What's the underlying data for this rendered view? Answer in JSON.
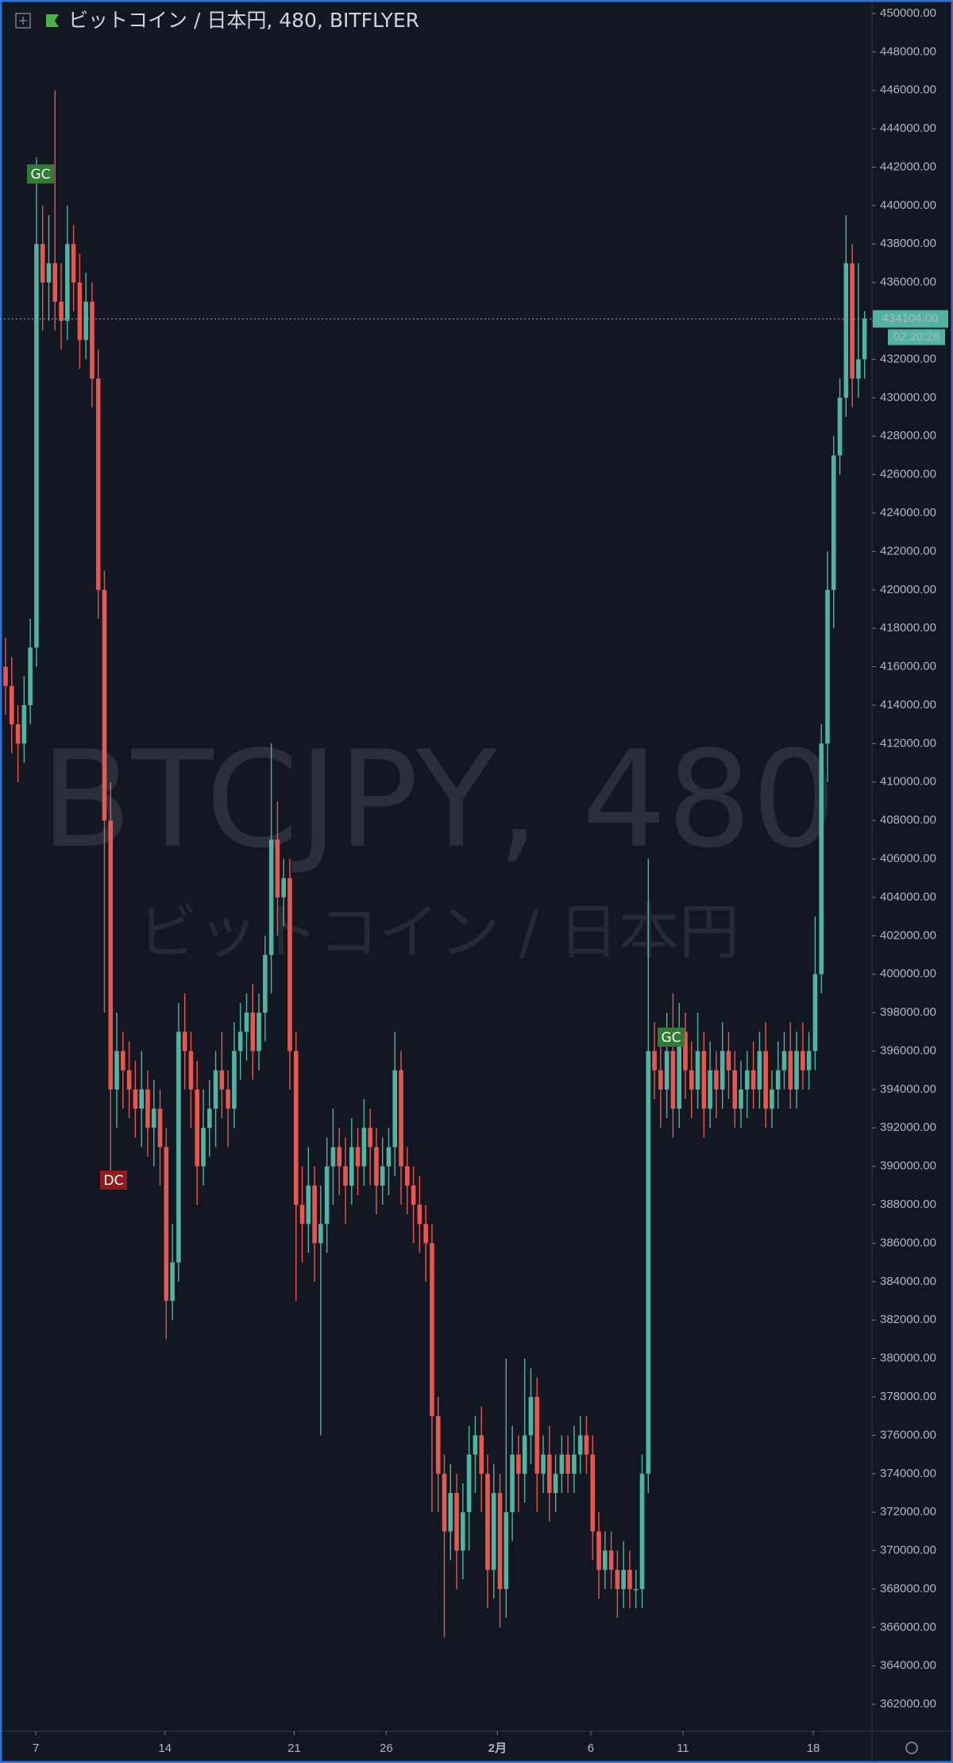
{
  "chart_data": {
    "type": "candlestick",
    "title": "ビットコイン / 日本円, 480, BITFLYER",
    "watermark": "BTCJPY, 480",
    "watermark_subtitle": "ビットコイン / 日本円",
    "up_color": "#4fb4a2",
    "down_color": "#e8574f",
    "open": [
      416000,
      415000,
      413000,
      412000,
      414000,
      417000,
      438000,
      436000,
      437000,
      435000,
      434000,
      438000,
      436000,
      433000,
      435000,
      431000,
      420000,
      408000,
      394000,
      396000,
      395000,
      394000,
      393000,
      394000,
      392000,
      393000,
      391000,
      383000,
      385000,
      397000,
      396000,
      394000,
      390000,
      392000,
      393000,
      395000,
      394000,
      393000,
      396000,
      397000,
      398000,
      396000,
      398000,
      401000,
      407000,
      404000,
      405000,
      396000,
      388000,
      387000,
      389000,
      386000,
      387000,
      390000,
      391000,
      390000,
      389000,
      391000,
      390000,
      392000,
      391000,
      389000,
      390000,
      391000,
      395000,
      390000,
      389000,
      388000,
      387000,
      386000,
      377000,
      374000,
      371000,
      373000,
      370000,
      372000,
      375000,
      376000,
      374000,
      369000,
      373000,
      368000,
      372000,
      375000,
      374000,
      376000,
      378000,
      374000,
      375000,
      373000,
      374000,
      375000,
      374000,
      375000,
      376000,
      375000,
      371000,
      369000,
      370000,
      369000,
      368000,
      369000,
      368000,
      368000,
      374000,
      396000,
      395000,
      394000,
      396000,
      393000,
      397000,
      395000,
      394000,
      396000,
      393000,
      395000,
      394000,
      396000,
      395000,
      393000,
      394000,
      395000,
      394000,
      396000,
      393000,
      394000,
      395000,
      396000,
      394000,
      396000,
      395000,
      396000,
      400000,
      412000,
      420000,
      427000,
      430000,
      437000,
      431000,
      432000
    ],
    "high": [
      417500,
      416500,
      414000,
      415500,
      418500,
      442500,
      440000,
      439500,
      446000,
      437000,
      440000,
      439000,
      437500,
      436500,
      436000,
      432500,
      421000,
      410000,
      398000,
      397000,
      396500,
      395500,
      396000,
      395000,
      394500,
      394000,
      392000,
      387000,
      398500,
      399000,
      397000,
      395500,
      394000,
      394500,
      396000,
      397000,
      395000,
      397500,
      398500,
      399000,
      399500,
      399000,
      402000,
      412000,
      409000,
      406000,
      406000,
      397000,
      390000,
      391000,
      390000,
      389000,
      391500,
      393000,
      392000,
      391500,
      392500,
      392000,
      393500,
      393000,
      392000,
      391500,
      392000,
      397000,
      396000,
      391000,
      390000,
      389500,
      388000,
      387000,
      378000,
      375000,
      374500,
      374000,
      373500,
      376500,
      377000,
      377500,
      375000,
      374500,
      374000,
      380000,
      376500,
      376000,
      380000,
      379500,
      379000,
      376000,
      376500,
      375000,
      376000,
      376000,
      376500,
      377000,
      377000,
      376000,
      372000,
      371000,
      371000,
      370000,
      370500,
      370000,
      369000,
      375000,
      406000,
      397500,
      396500,
      398000,
      399000,
      398500,
      398000,
      396500,
      398000,
      397000,
      396500,
      396000,
      397500,
      397000,
      396000,
      395500,
      396000,
      396500,
      397000,
      397500,
      395000,
      396500,
      397000,
      397500,
      397000,
      397500,
      397000,
      403000,
      413000,
      422000,
      428000,
      431000,
      439500,
      438000,
      437000,
      434500
    ],
    "low": [
      413500,
      411500,
      410000,
      411000,
      413000,
      416000,
      433500,
      434000,
      433500,
      432500,
      433000,
      434500,
      431500,
      432000,
      429500,
      418500,
      398000,
      389000,
      392000,
      393000,
      392500,
      391500,
      391000,
      390500,
      390000,
      389000,
      381000,
      382000,
      384000,
      394000,
      392000,
      388000,
      389000,
      390500,
      391000,
      392500,
      391000,
      392000,
      394500,
      395500,
      394500,
      395000,
      396500,
      399000,
      402000,
      402500,
      394000,
      383000,
      385000,
      385500,
      384000,
      376000,
      385500,
      388000,
      388500,
      387000,
      388000,
      388500,
      389000,
      389000,
      387500,
      388000,
      388500,
      389500,
      388000,
      387500,
      386000,
      385500,
      384000,
      372000,
      372000,
      365500,
      369500,
      368000,
      368500,
      370000,
      373000,
      372000,
      367000,
      367500,
      366000,
      366500,
      370500,
      372000,
      372500,
      374500,
      372000,
      373000,
      371500,
      372000,
      373000,
      373000,
      373000,
      374000,
      374000,
      369500,
      367500,
      368000,
      368000,
      366500,
      367000,
      367000,
      367000,
      367000,
      373000,
      393500,
      392000,
      392500,
      391500,
      392000,
      393500,
      392500,
      393000,
      391500,
      392000,
      392500,
      393000,
      393500,
      392000,
      392000,
      392500,
      393000,
      393000,
      392000,
      392000,
      393000,
      394000,
      393000,
      393000,
      394000,
      394000,
      395000,
      399000,
      410000,
      418000,
      426000,
      429000,
      429500,
      430000,
      431000
    ],
    "close": [
      415000,
      413000,
      412000,
      414000,
      417000,
      438000,
      436000,
      437000,
      435000,
      434000,
      438000,
      436000,
      433000,
      435000,
      431000,
      420000,
      408000,
      394000,
      396000,
      395000,
      394000,
      393000,
      394000,
      392000,
      393000,
      391000,
      383000,
      385000,
      397000,
      396000,
      394000,
      390000,
      392000,
      393000,
      395000,
      394000,
      393000,
      396000,
      397000,
      398000,
      396000,
      398000,
      401000,
      407000,
      404000,
      405000,
      396000,
      388000,
      387000,
      389000,
      386000,
      387000,
      390000,
      391000,
      390000,
      389000,
      391000,
      390000,
      392000,
      391000,
      389000,
      390000,
      391000,
      395000,
      390000,
      389000,
      388000,
      387000,
      386000,
      377000,
      374000,
      371000,
      373000,
      370000,
      372000,
      375000,
      376000,
      374000,
      369000,
      373000,
      368000,
      372000,
      375000,
      374000,
      376000,
      378000,
      374000,
      375000,
      373000,
      374000,
      375000,
      374000,
      375000,
      376000,
      375000,
      371000,
      369000,
      370000,
      369000,
      368000,
      369000,
      368000,
      368000,
      374000,
      396000,
      395000,
      394000,
      396000,
      393000,
      397000,
      395000,
      394000,
      396000,
      393000,
      395000,
      394000,
      396000,
      395000,
      393000,
      394000,
      395000,
      394000,
      396000,
      393000,
      394000,
      395000,
      396000,
      394000,
      396000,
      395000,
      396000,
      400000,
      412000,
      420000,
      427000,
      430000,
      437000,
      431000,
      432000,
      434104
    ],
    "ylim": [
      360600,
      450700
    ],
    "yticks": [
      {
        "value": 362000,
        "label": "362000.00"
      },
      {
        "value": 364000,
        "label": "364000.00"
      },
      {
        "value": 366000,
        "label": "366000.00"
      },
      {
        "value": 368000,
        "label": "368000.00"
      },
      {
        "value": 370000,
        "label": "370000.00"
      },
      {
        "value": 372000,
        "label": "372000.00"
      },
      {
        "value": 374000,
        "label": "374000.00"
      },
      {
        "value": 376000,
        "label": "376000.00"
      },
      {
        "value": 378000,
        "label": "378000.00"
      },
      {
        "value": 380000,
        "label": "380000.00"
      },
      {
        "value": 382000,
        "label": "382000.00"
      },
      {
        "value": 384000,
        "label": "384000.00"
      },
      {
        "value": 386000,
        "label": "386000.00"
      },
      {
        "value": 388000,
        "label": "388000.00"
      },
      {
        "value": 390000,
        "label": "390000.00"
      },
      {
        "value": 392000,
        "label": "392000.00"
      },
      {
        "value": 394000,
        "label": "394000.00"
      },
      {
        "value": 396000,
        "label": "396000.00"
      },
      {
        "value": 398000,
        "label": "398000.00"
      },
      {
        "value": 400000,
        "label": "400000.00"
      },
      {
        "value": 402000,
        "label": "402000.00"
      },
      {
        "value": 404000,
        "label": "404000.00"
      },
      {
        "value": 406000,
        "label": "406000.00"
      },
      {
        "value": 408000,
        "label": "408000.00"
      },
      {
        "value": 410000,
        "label": "410000.00"
      },
      {
        "value": 412000,
        "label": "412000.00"
      },
      {
        "value": 414000,
        "label": "414000.00"
      },
      {
        "value": 416000,
        "label": "416000.00"
      },
      {
        "value": 418000,
        "label": "418000.00"
      },
      {
        "value": 420000,
        "label": "420000.00"
      },
      {
        "value": 422000,
        "label": "422000.00"
      },
      {
        "value": 424000,
        "label": "424000.00"
      },
      {
        "value": 426000,
        "label": "426000.00"
      },
      {
        "value": 428000,
        "label": "428000.00"
      },
      {
        "value": 430000,
        "label": "430000.00"
      },
      {
        "value": 432000,
        "label": "432000.00"
      },
      {
        "value": 434000,
        "label": "434000.00"
      },
      {
        "value": 436000,
        "label": "436000.00"
      },
      {
        "value": 438000,
        "label": "438000.00"
      },
      {
        "value": 440000,
        "label": "440000.00"
      },
      {
        "value": 442000,
        "label": "442000.00"
      },
      {
        "value": 444000,
        "label": "444000.00"
      },
      {
        "value": 446000,
        "label": "446000.00"
      },
      {
        "value": 448000,
        "label": "448000.00"
      },
      {
        "value": 450000,
        "label": "450000.00"
      }
    ],
    "xlim": [
      -0.9,
      140.2
    ],
    "xticks": [
      {
        "value": 4.9,
        "label": "7"
      },
      {
        "value": 25.8,
        "label": "14"
      },
      {
        "value": 46.7,
        "label": "21"
      },
      {
        "value": 61.6,
        "label": "26"
      },
      {
        "value": 79.6,
        "label": "2月"
      },
      {
        "value": 94.7,
        "label": "6"
      },
      {
        "value": 109.6,
        "label": "11"
      },
      {
        "value": 130.7,
        "label": "18"
      }
    ],
    "last_price": {
      "value": 434104,
      "label": "434104.00"
    },
    "countdown": "02:20:28",
    "annotations": [
      "GC",
      "DC",
      "GC"
    ]
  }
}
